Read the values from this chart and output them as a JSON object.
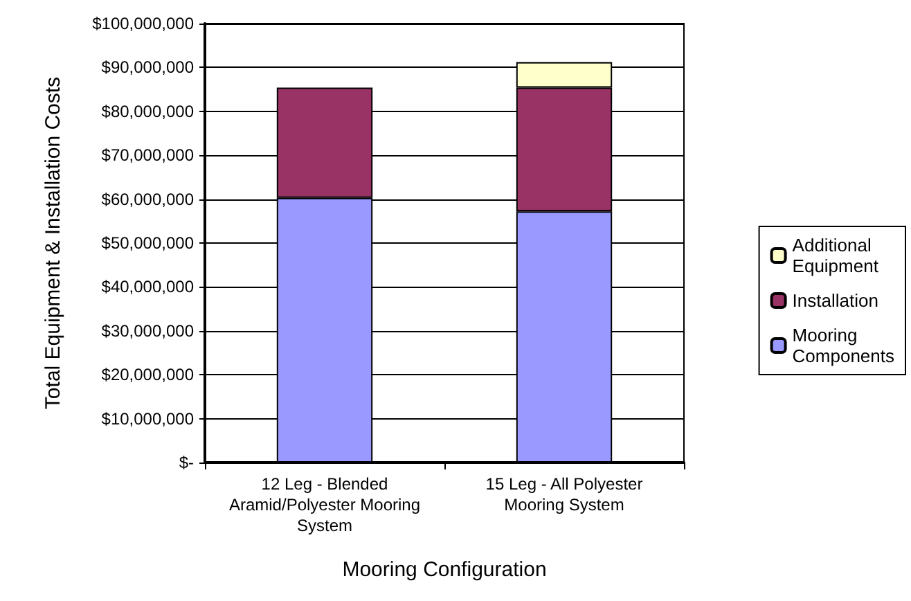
{
  "chart_data": {
    "type": "bar",
    "stacked": true,
    "xlabel": "Mooring Configuration",
    "ylabel": "Total Equipment & Installation Costs",
    "categories": [
      "12 Leg - Blended\nAramid/Polyester Mooring\nSystem",
      "15 Leg - All Polyester\nMooring System"
    ],
    "series": [
      {
        "name": "Mooring\nComponents",
        "color": "#9999ff",
        "values": [
          60300000,
          57200000
        ]
      },
      {
        "name": "Installation",
        "color": "#993366",
        "values": [
          25100000,
          28200000
        ]
      },
      {
        "name": "Additional\nEquipment",
        "color": "#ffffcc",
        "values": [
          null,
          5800000
        ]
      }
    ],
    "ylim": [
      0,
      100000000
    ],
    "yticks": [
      {
        "value": 0,
        "label": "$-"
      },
      {
        "value": 10000000,
        "label": "$10,000,000"
      },
      {
        "value": 20000000,
        "label": "$20,000,000"
      },
      {
        "value": 30000000,
        "label": "$30,000,000"
      },
      {
        "value": 40000000,
        "label": "$40,000,000"
      },
      {
        "value": 50000000,
        "label": "$50,000,000"
      },
      {
        "value": 60000000,
        "label": "$60,000,000"
      },
      {
        "value": 70000000,
        "label": "$70,000,000"
      },
      {
        "value": 80000000,
        "label": "$80,000,000"
      },
      {
        "value": 90000000,
        "label": "$90,000,000"
      },
      {
        "value": 100000000,
        "label": "$100,000,000"
      }
    ],
    "grid": "y",
    "legend": "right"
  }
}
